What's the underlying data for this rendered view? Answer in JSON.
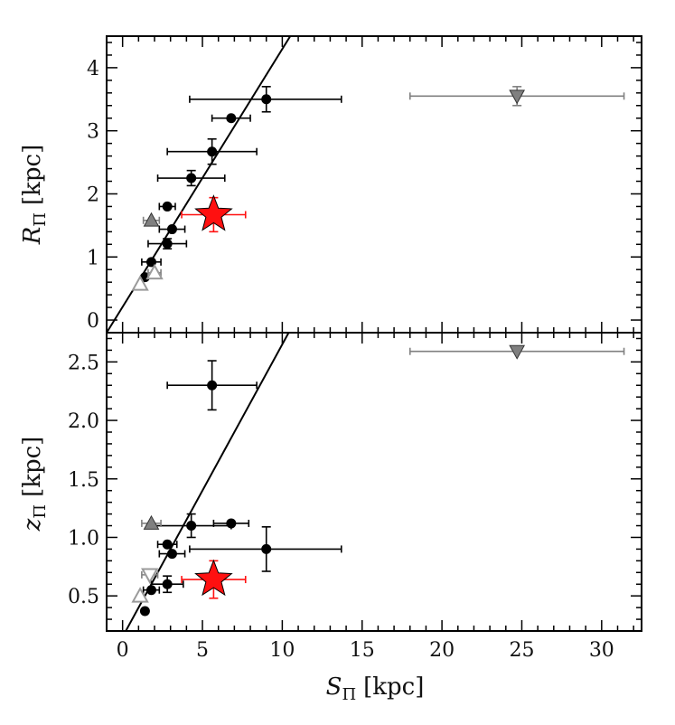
{
  "chart_data": [
    {
      "panel": "top",
      "type": "scatter",
      "ylabel_main": "R",
      "ylabel_sub": "Π",
      "ylabel_unit": "[kpc]",
      "xlim": [
        -1.0,
        32.5
      ],
      "ylim": [
        -0.2,
        4.5
      ],
      "xticks": [
        0,
        5,
        10,
        15,
        20,
        25,
        30
      ],
      "yticks": [
        0,
        1,
        2,
        3,
        4
      ],
      "ytick_labels": [
        "0",
        "1",
        "2",
        "3",
        "4"
      ],
      "fit_line": {
        "x1": -1.0,
        "y1": -0.2,
        "x2": 10.5,
        "y2": 4.5
      },
      "series": [
        {
          "name": "black circles",
          "marker": "circle",
          "color": "#000000",
          "points": [
            {
              "x": 9.0,
              "y": 3.5,
              "xerr": [
                4.8,
                4.7
              ],
              "yerr": [
                0.2,
                0.2
              ]
            },
            {
              "x": 6.8,
              "y": 3.2,
              "xerr": [
                1.2,
                1.2
              ],
              "yerr": [
                0.0,
                0.0
              ]
            },
            {
              "x": 5.6,
              "y": 2.67,
              "xerr": [
                2.8,
                2.8
              ],
              "yerr": [
                0.2,
                0.2
              ]
            },
            {
              "x": 4.3,
              "y": 2.25,
              "xerr": [
                2.1,
                2.1
              ],
              "yerr": [
                0.12,
                0.12
              ]
            },
            {
              "x": 2.8,
              "y": 1.8,
              "xerr": [
                0.5,
                0.5
              ],
              "yerr": [
                0.0,
                0.0
              ]
            },
            {
              "x": 3.1,
              "y": 1.44,
              "xerr": [
                0.8,
                0.8
              ],
              "yerr": [
                0.0,
                0.0
              ]
            },
            {
              "x": 2.8,
              "y": 1.21,
              "xerr": [
                1.2,
                1.2
              ],
              "yerr": [
                0.08,
                0.08
              ]
            },
            {
              "x": 1.8,
              "y": 0.92,
              "xerr": [
                0.6,
                0.6
              ],
              "yerr": [
                0.0,
                0.0
              ]
            },
            {
              "x": 1.4,
              "y": 0.68,
              "xerr": [
                0.1,
                0.1
              ],
              "yerr": [
                0.0,
                0.0
              ]
            }
          ]
        },
        {
          "name": "red star",
          "marker": "star",
          "color": "#ff1010",
          "points": [
            {
              "x": 5.7,
              "y": 1.67,
              "xerr": [
                2.0,
                2.0
              ],
              "yerr": [
                0.27,
                0.27
              ]
            }
          ]
        },
        {
          "name": "gray filled up triangle",
          "marker": "triangle-up",
          "color": "#808080",
          "filled": true,
          "points": [
            {
              "x": 1.8,
              "y": 1.58,
              "xerr": [
                0.5,
                0.5
              ],
              "yerr": [
                0.0,
                0.0
              ]
            }
          ]
        },
        {
          "name": "gray filled down triangle",
          "marker": "triangle-down",
          "color": "#808080",
          "filled": true,
          "points": [
            {
              "x": 24.7,
              "y": 3.55,
              "xerr": [
                6.7,
                6.7
              ],
              "yerr": [
                0.15,
                0.15
              ]
            }
          ]
        },
        {
          "name": "gray open triangles",
          "marker": "triangle-up",
          "color": "#808080",
          "filled": false,
          "points": [
            {
              "x": 1.1,
              "y": 0.57,
              "xerr": [
                0.1,
                0.1
              ],
              "yerr": [
                0.0,
                0.0
              ]
            },
            {
              "x": 2.0,
              "y": 0.75,
              "xerr": [
                0.4,
                0.4
              ],
              "yerr": [
                0.0,
                0.0
              ]
            }
          ]
        }
      ]
    },
    {
      "panel": "bottom",
      "type": "scatter",
      "ylabel_main": "z",
      "ylabel_sub": "Π",
      "ylabel_unit": "[kpc]",
      "xlabel_main": "S",
      "xlabel_sub": "Π",
      "xlabel_unit": "[kpc]",
      "xlim": [
        -1.0,
        32.5
      ],
      "ylim": [
        0.2,
        2.75
      ],
      "xticks": [
        0,
        5,
        10,
        15,
        20,
        25,
        30
      ],
      "xtick_labels": [
        "0",
        "5",
        "10",
        "15",
        "20",
        "25",
        "30"
      ],
      "yticks": [
        0.5,
        1.0,
        1.5,
        2.0,
        2.5
      ],
      "ytick_labels": [
        "0.5",
        "1.0",
        "1.5",
        "2.0",
        "2.5"
      ],
      "fit_line": {
        "x1": 0.2,
        "y1": 0.2,
        "x2": 10.4,
        "y2": 2.75
      },
      "series": [
        {
          "name": "black circles",
          "marker": "circle",
          "color": "#000000",
          "points": [
            {
              "x": 5.6,
              "y": 2.3,
              "xerr": [
                2.8,
                2.8
              ],
              "yerr": [
                0.21,
                0.21
              ]
            },
            {
              "x": 6.8,
              "y": 1.12,
              "xerr": [
                1.1,
                1.1
              ],
              "yerr": [
                0.0,
                0.0
              ]
            },
            {
              "x": 4.3,
              "y": 1.1,
              "xerr": [
                2.5,
                2.5
              ],
              "yerr": [
                0.1,
                0.1
              ]
            },
            {
              "x": 9.0,
              "y": 0.9,
              "xerr": [
                4.8,
                4.7
              ],
              "yerr": [
                0.19,
                0.19
              ]
            },
            {
              "x": 2.8,
              "y": 0.94,
              "xerr": [
                0.6,
                0.6
              ],
              "yerr": [
                0.0,
                0.0
              ]
            },
            {
              "x": 3.1,
              "y": 0.86,
              "xerr": [
                0.8,
                0.8
              ],
              "yerr": [
                0.0,
                0.0
              ]
            },
            {
              "x": 2.8,
              "y": 0.6,
              "xerr": [
                1.0,
                1.0
              ],
              "yerr": [
                0.07,
                0.07
              ]
            },
            {
              "x": 1.8,
              "y": 0.55,
              "xerr": [
                0.5,
                0.5
              ],
              "yerr": [
                0.0,
                0.0
              ]
            },
            {
              "x": 1.4,
              "y": 0.37,
              "xerr": [
                0.1,
                0.1
              ],
              "yerr": [
                0.0,
                0.0
              ]
            }
          ]
        },
        {
          "name": "red star",
          "marker": "star",
          "color": "#ff1010",
          "points": [
            {
              "x": 5.7,
              "y": 0.64,
              "xerr": [
                2.0,
                2.0
              ],
              "yerr": [
                0.16,
                0.16
              ]
            }
          ]
        },
        {
          "name": "gray filled up triangle",
          "marker": "triangle-up",
          "color": "#808080",
          "filled": true,
          "points": [
            {
              "x": 1.8,
              "y": 1.12,
              "xerr": [
                0.6,
                0.6
              ],
              "yerr": [
                0.0,
                0.0
              ]
            }
          ]
        },
        {
          "name": "gray filled down triangle",
          "marker": "triangle-down",
          "color": "#808080",
          "filled": true,
          "points": [
            {
              "x": 24.7,
              "y": 2.59,
              "xerr": [
                6.7,
                6.7
              ],
              "yerr": [
                0.0,
                0.0
              ]
            }
          ]
        },
        {
          "name": "gray open triangles",
          "marker": "triangle-up",
          "color": "#808080",
          "filled": false,
          "points": [
            {
              "x": 1.1,
              "y": 0.5,
              "xerr": [
                0.1,
                0.1
              ],
              "yerr": [
                0.0,
                0.0
              ]
            }
          ]
        },
        {
          "name": "gray open down triangles",
          "marker": "triangle-down",
          "color": "#808080",
          "filled": false,
          "points": [
            {
              "x": 1.7,
              "y": 0.68,
              "xerr": [
                0.5,
                0.5
              ],
              "yerr": [
                0.0,
                0.0
              ]
            }
          ]
        }
      ]
    }
  ]
}
